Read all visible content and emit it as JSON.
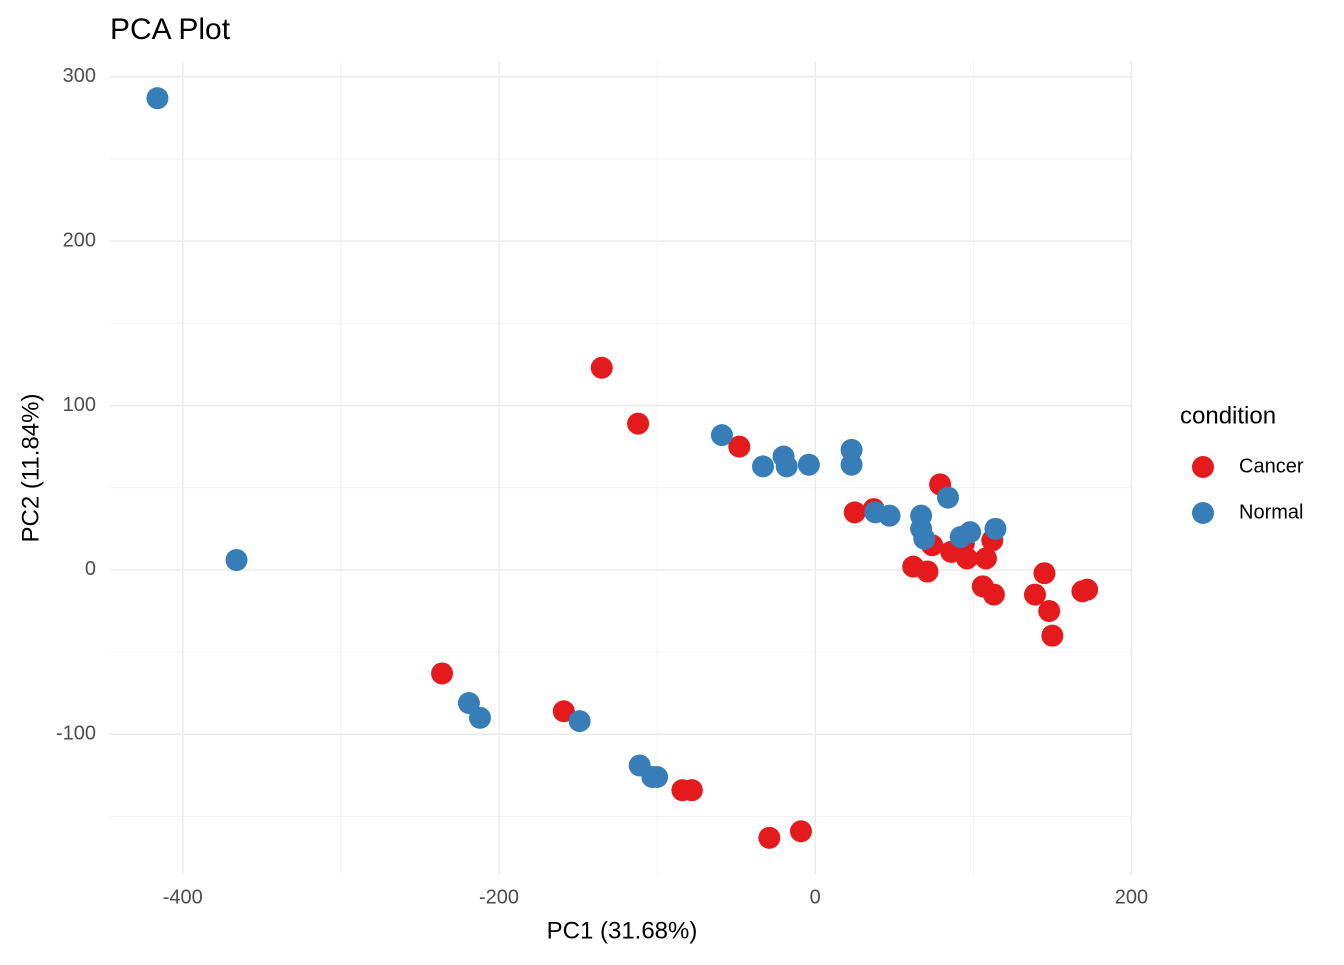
{
  "chart_data": {
    "type": "scatter",
    "title": "PCA Plot",
    "x_label": "PC1 (31.68%)",
    "y_label": "PC2 (11.84%)",
    "legend_title": "condition",
    "legend_position": "right",
    "xlim": [
      -446,
      201
    ],
    "ylim": [
      -185,
      309
    ],
    "xticks": [
      -400,
      -200,
      0,
      200
    ],
    "yticks": [
      -100,
      0,
      100,
      200,
      300
    ],
    "grid": true,
    "minor_grid": true,
    "series": [
      {
        "name": "Cancer",
        "color": "#E41A1C",
        "x": [
          -135,
          -112,
          -48,
          -236,
          -159,
          -84,
          -78,
          -29,
          -9,
          25,
          37,
          79,
          62,
          71,
          74,
          86,
          94,
          96,
          108,
          112,
          106,
          113,
          139,
          145,
          148,
          150,
          169,
          172
        ],
        "y": [
          123,
          89,
          75,
          -63,
          -86,
          -134,
          -134,
          -163,
          -159,
          35,
          37,
          52,
          2,
          -1,
          15,
          11,
          16,
          7,
          7,
          18,
          -10,
          -15,
          -15,
          -2,
          -25,
          -40,
          -13,
          -12
        ]
      },
      {
        "name": "Normal",
        "color": "#377EB8",
        "x": [
          -416,
          -366,
          -219,
          -212,
          -149,
          -111,
          -103,
          -100,
          -59,
          -33,
          -20,
          -18,
          -4,
          23,
          23,
          38,
          47,
          67,
          67,
          69,
          84,
          92,
          98,
          114
        ],
        "y": [
          287,
          6,
          -81,
          -90,
          -92,
          -119,
          -126,
          -126,
          82,
          63,
          69,
          63,
          64,
          73,
          64,
          35,
          33,
          33,
          25,
          19,
          44,
          20,
          23,
          25
        ]
      }
    ]
  }
}
